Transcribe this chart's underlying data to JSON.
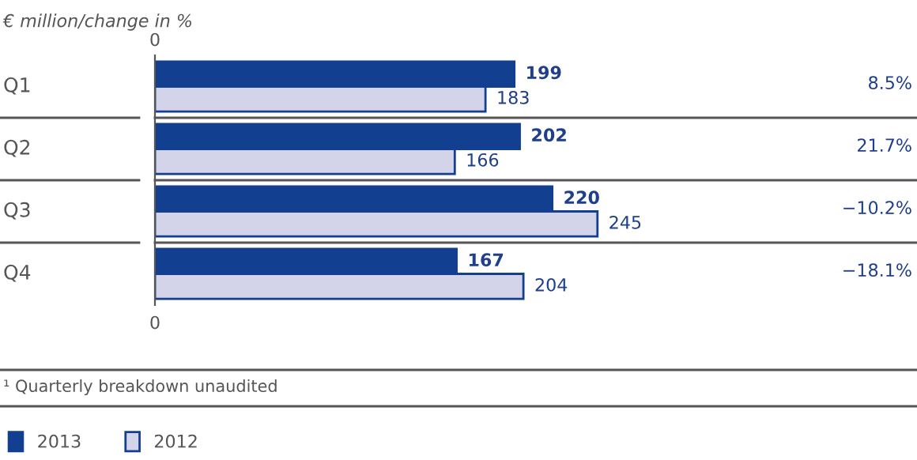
{
  "chart_data": {
    "type": "bar",
    "orientation": "horizontal",
    "title": "€ million/change in %",
    "categories": [
      "Q1",
      "Q2",
      "Q3",
      "Q4"
    ],
    "series": [
      {
        "name": "2013",
        "color": "#123f8f",
        "values": [
          199,
          202,
          220,
          167
        ]
      },
      {
        "name": "2012",
        "color": "#d3d3ea",
        "values": [
          183,
          166,
          245,
          204
        ]
      }
    ],
    "data_labels": true,
    "legend": "bottom left",
    "annotations": [
      "0",
      "8.5%",
      "21.7%",
      "−10.2%",
      "−18.1%",
      "0",
      "¹ Quarterly breakdown unaudited"
    ]
  }
}
